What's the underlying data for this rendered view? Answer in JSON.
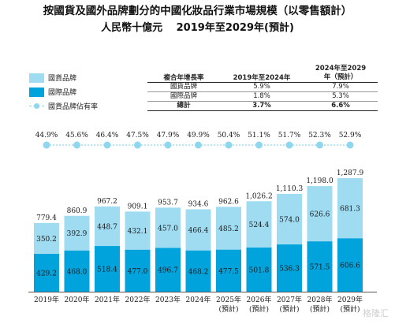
{
  "title": "按國貨及國外品牌劃分的中國化妝品行業市場規模（以零售額計）",
  "subtitle": "人民幣十億元　 2019年至2029年(預計)",
  "legend": {
    "domestic": "國貨品牌",
    "international": "國際品牌",
    "share": "國貨品牌佔有率"
  },
  "cagr_table": {
    "header": [
      "複合年增長率",
      "2019年至2024年",
      "2024年至2029年（預計）"
    ],
    "rows": [
      [
        "國貨品牌",
        "5.9%",
        "7.9%"
      ],
      [
        "國際品牌",
        "1.8%",
        "5.3%"
      ]
    ],
    "total": [
      "總計",
      "3.7%",
      "6.6%"
    ]
  },
  "colors": {
    "domestic": "#9fdcf2",
    "international": "#00a3dc",
    "share_line": "#8fd6ef"
  },
  "watermark": "格隆汇",
  "chart_data": {
    "type": "bar",
    "stacked": true,
    "title": "按國貨及國外品牌劃分的中國化妝品行業市場規模（以零售額計）",
    "subtitle": "人民幣十億元　 2019年至2029年(預計)",
    "categories": [
      "2019年",
      "2020年",
      "2021年",
      "2022年",
      "2023年",
      "2024年",
      "2025年\n(預計)",
      "2026年\n(預計)",
      "2027年\n(預計)",
      "2028年\n(預計)",
      "2029年\n(預計)"
    ],
    "series": [
      {
        "name": "國際品牌",
        "values": [
          429.2,
          468.0,
          518.4,
          477.0,
          496.7,
          468.2,
          477.5,
          501.8,
          536.3,
          571.5,
          606.6
        ]
      },
      {
        "name": "國貨品牌",
        "values": [
          350.2,
          392.9,
          448.7,
          432.1,
          457.0,
          466.4,
          485.2,
          524.4,
          574.0,
          626.6,
          681.3
        ]
      }
    ],
    "totals": [
      779.4,
      860.9,
      967.2,
      909.1,
      953.7,
      934.6,
      962.6,
      1026.2,
      1110.3,
      1198.0,
      1287.9
    ],
    "total_labels": [
      "779.4",
      "860.9",
      "967.2",
      "909.1",
      "953.7",
      "934.6",
      "962.6",
      "1,026.2",
      "1,110.3",
      "1,198.0",
      "1,287.9"
    ],
    "line": {
      "name": "國貨品牌佔有率",
      "values": [
        "44.9%",
        "45.6%",
        "46.4%",
        "47.5%",
        "47.9%",
        "49.9%",
        "50.4%",
        "51.1%",
        "51.7%",
        "52.3%",
        "52.9%"
      ]
    },
    "ylim": [
      0,
      1300
    ]
  }
}
